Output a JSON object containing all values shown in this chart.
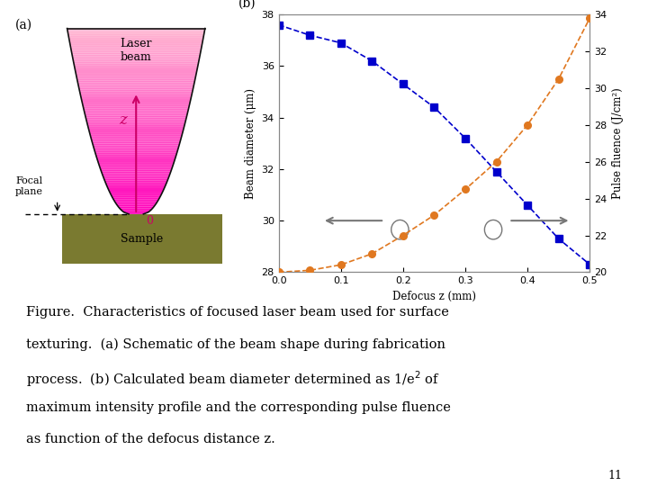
{
  "blue_x": [
    0.0,
    0.05,
    0.1,
    0.15,
    0.2,
    0.25,
    0.3,
    0.35,
    0.4,
    0.45,
    0.5
  ],
  "blue_y": [
    37.6,
    37.2,
    36.9,
    36.2,
    35.3,
    34.4,
    33.2,
    31.9,
    30.6,
    29.3,
    28.3
  ],
  "orange_x": [
    0.0,
    0.05,
    0.1,
    0.15,
    0.2,
    0.25,
    0.3,
    0.35,
    0.4,
    0.45,
    0.5
  ],
  "orange_y": [
    20.0,
    20.1,
    20.4,
    21.0,
    22.0,
    23.1,
    24.5,
    26.0,
    28.0,
    30.5,
    33.8
  ],
  "blue_color": "#0000CC",
  "orange_color": "#E07820",
  "xlabel": "Defocus z (mm)",
  "ylabel_left": "Beam diameter (μm)",
  "ylabel_right": "Pulse fluence (J/cm²)",
  "ylim_left": [
    28,
    38
  ],
  "ylim_right": [
    20,
    34
  ],
  "xlim": [
    0.0,
    0.5
  ],
  "yticks_left": [
    28,
    30,
    32,
    34,
    36,
    38
  ],
  "yticks_right": [
    20,
    22,
    24,
    26,
    28,
    30,
    32,
    34
  ],
  "xticks": [
    0.0,
    0.1,
    0.2,
    0.3,
    0.4,
    0.5
  ],
  "page_number": "11",
  "beam_color_top": "#F5C0D5",
  "beam_color_bottom": "#FF00BB",
  "sample_color": "#7A7A30",
  "arrow_color": "#CC0066",
  "outline_color": "#111111",
  "arrow_gray": "#777777",
  "caption_fontsize": 10.5
}
